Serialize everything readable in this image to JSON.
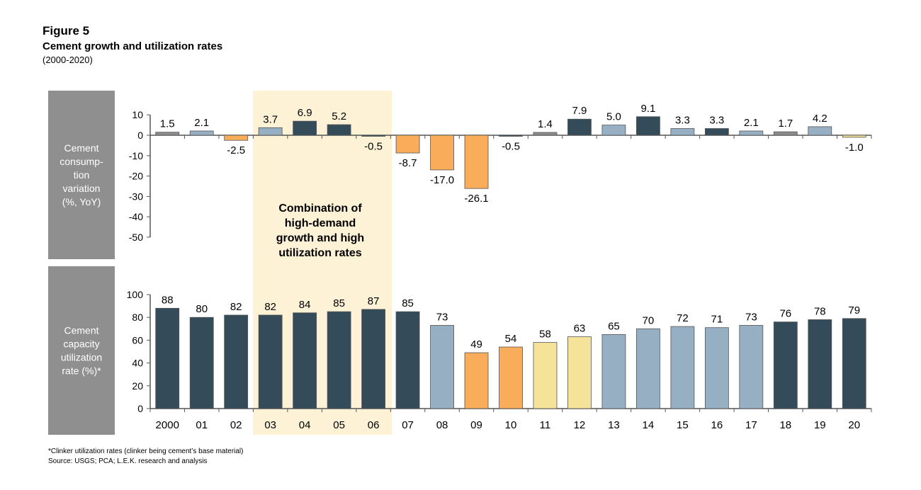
{
  "header": {
    "figure": "Figure 5",
    "title": "Cement growth and utilization rates",
    "subtitle": "(2000-2020)"
  },
  "annotation": "Combination of high-demand growth and high utilization rates",
  "footnotes": [
    "*Clinker utilization rates (clinker being cement’s base material)",
    "Source: USGS; PCA; L.E.K. research and analysis"
  ],
  "colors": {
    "dark": "#344b5a",
    "lightblue": "#97afc3",
    "grey": "#8c8c8c",
    "orange": "#f9ad5a",
    "yellow": "#f5e39a",
    "highlight": "#fdf1d6",
    "labelbox": "#8f8f8f"
  },
  "chart_data": [
    {
      "type": "bar",
      "ylabel": "Cement consumption variation (%, YoY)",
      "ylim": [
        -50,
        10
      ],
      "yticks": [
        10,
        0,
        -10,
        -20,
        -30,
        -40,
        -50
      ],
      "categories": [
        "2000",
        "01",
        "02",
        "03",
        "04",
        "05",
        "06",
        "07",
        "08",
        "09",
        "10",
        "11",
        "12",
        "13",
        "14",
        "15",
        "16",
        "17",
        "18",
        "19",
        "20"
      ],
      "values": [
        1.5,
        2.1,
        -2.5,
        3.7,
        6.9,
        5.2,
        -0.5,
        -8.7,
        -17.0,
        -26.1,
        -0.5,
        1.4,
        7.9,
        5.0,
        9.1,
        3.3,
        3.3,
        2.1,
        1.7,
        4.2,
        -1.0
      ],
      "bar_colors": [
        "grey",
        "lightblue",
        "orange",
        "lightblue",
        "dark",
        "dark",
        "dark",
        "orange",
        "orange",
        "orange",
        "dark",
        "grey",
        "dark",
        "lightblue",
        "dark",
        "lightblue",
        "dark",
        "lightblue",
        "grey",
        "lightblue",
        "yellow"
      ]
    },
    {
      "type": "bar",
      "ylabel": "Cement capacity utilization rate (%)*",
      "ylim": [
        0,
        100
      ],
      "yticks": [
        100,
        80,
        60,
        40,
        20,
        0
      ],
      "categories": [
        "2000",
        "01",
        "02",
        "03",
        "04",
        "05",
        "06",
        "07",
        "08",
        "09",
        "10",
        "11",
        "12",
        "13",
        "14",
        "15",
        "16",
        "17",
        "18",
        "19",
        "20"
      ],
      "values": [
        88,
        80,
        82,
        82,
        84,
        85,
        87,
        85,
        73,
        49,
        54,
        58,
        63,
        65,
        70,
        72,
        71,
        73,
        76,
        78,
        79
      ],
      "bar_colors": [
        "dark",
        "dark",
        "dark",
        "dark",
        "dark",
        "dark",
        "dark",
        "dark",
        "lightblue",
        "orange",
        "orange",
        "yellow",
        "yellow",
        "lightblue",
        "lightblue",
        "lightblue",
        "lightblue",
        "lightblue",
        "dark",
        "dark",
        "dark"
      ]
    }
  ]
}
